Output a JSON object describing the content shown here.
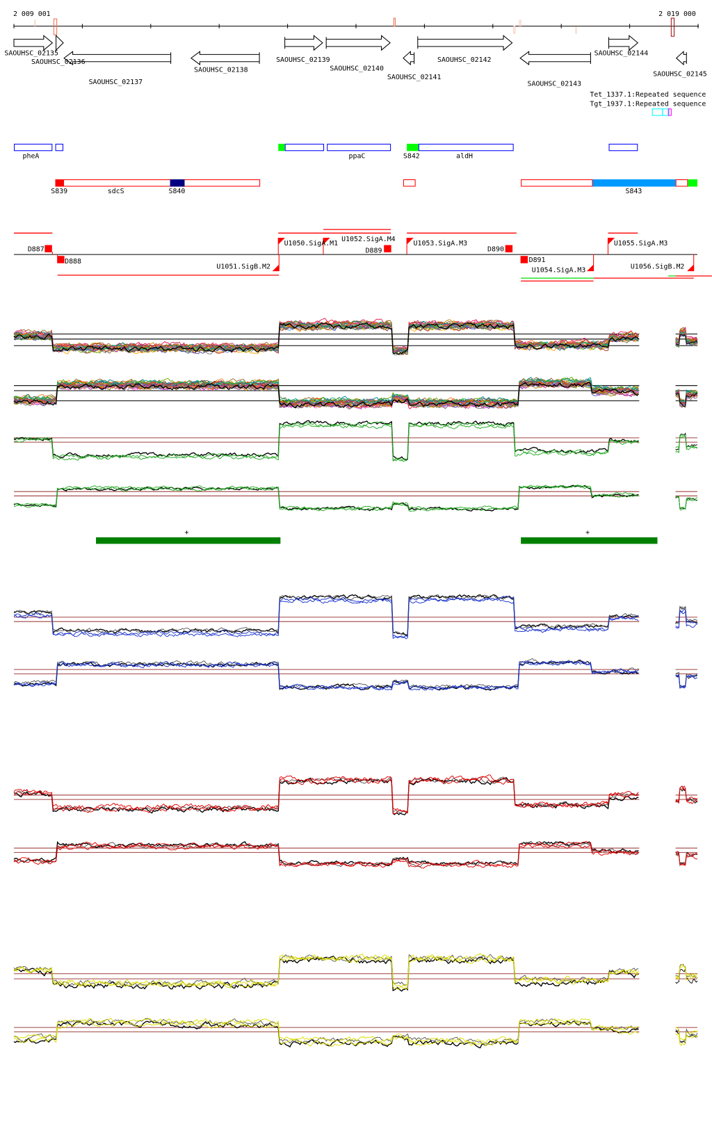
{
  "ruler": {
    "start_label": "2 009 001",
    "end_label": "2 019 000"
  },
  "genes": [
    {
      "label": "SAOUHSC_02135",
      "strand": "+"
    },
    {
      "label": "SAOUHSC_02136",
      "strand": "+"
    },
    {
      "label": "SAOUHSC_02137",
      "strand": "-"
    },
    {
      "label": "SAOUHSC_02138",
      "strand": "-"
    },
    {
      "label": "SAOUHSC_02139",
      "strand": "+"
    },
    {
      "label": "SAOUHSC_02140",
      "strand": "+"
    },
    {
      "label": "SAOUHSC_02141",
      "strand": "-"
    },
    {
      "label": "SAOUHSC_02142",
      "strand": "+"
    },
    {
      "label": "SAOUHSC_02143",
      "strand": "-"
    },
    {
      "label": "SAOUHSC_02144",
      "strand": "+"
    },
    {
      "label": "SAOUHSC_02145",
      "strand": "-"
    }
  ],
  "repeats": {
    "label_a": "Tet_1337.1:Repeated sequence",
    "label_b": "Tgt_1937.1:Repeated sequence"
  },
  "plus_strand_features": {
    "labels": [
      "pheA",
      "ppaC",
      "S842",
      "aldH"
    ]
  },
  "minus_strand_features": {
    "labels": [
      "S839",
      "sdcS",
      "S840",
      "S843"
    ]
  },
  "transcripts": {
    "labels": [
      "D887",
      "D888",
      "U1050.SigA.M1",
      "U1051.SigB.M2",
      "U1052.SigA.M4",
      "D889",
      "U1053.SigA.M3",
      "D890",
      "D891",
      "U1054.SigA.M3",
      "U1055.SigA.M3",
      "U1056.SigB.M2"
    ]
  },
  "segments": {
    "labels": [
      "+",
      "+"
    ]
  },
  "colors": {
    "feature_outline_blue": "#0000ff",
    "feature_red": "#ff0000",
    "feature_green": "#00ff00",
    "feature_navy": "#000080",
    "feature_lightblue": "#0099ff",
    "segment_green": "#008000",
    "track_green": "#22aa22",
    "track_blue": "#1a33cc",
    "track_red": "#dd0000",
    "track_yellow": "#dddd00",
    "reference_line": "#a04040",
    "repeat_cyan": "#00ffff",
    "repeat_magenta": "#ff00ff"
  }
}
